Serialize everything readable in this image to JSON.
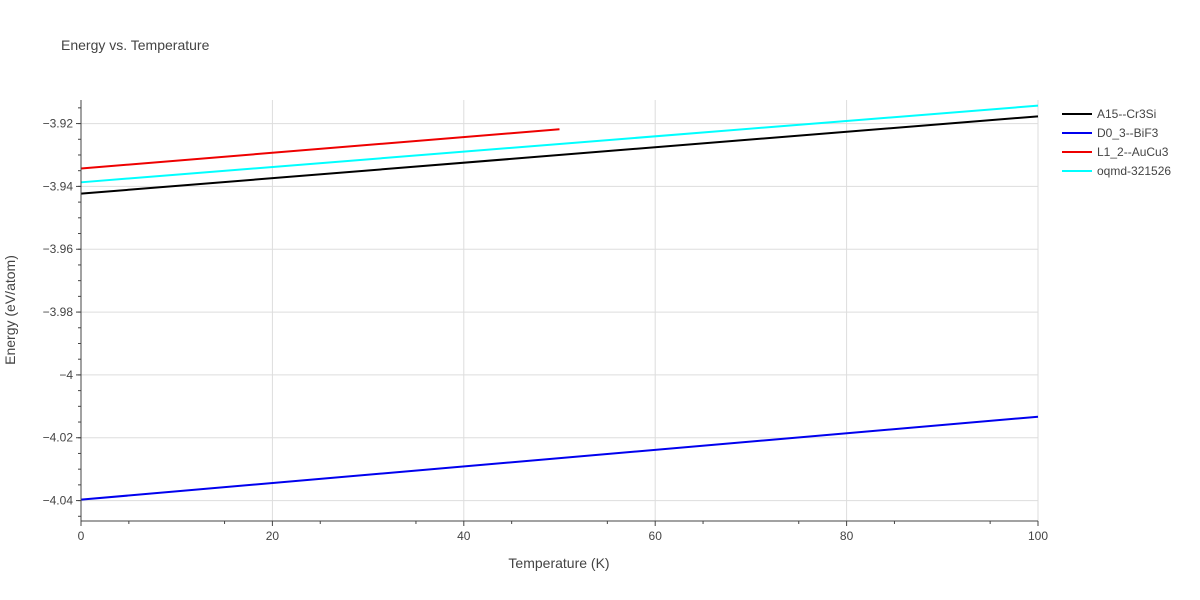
{
  "chart_data": {
    "type": "line",
    "title": "Energy vs. Temperature",
    "xlabel": "Temperature (K)",
    "ylabel": "Energy (eV/atom)",
    "xlim": [
      0,
      100
    ],
    "ylim": [
      -4.0465,
      -3.9125
    ],
    "x_ticks": [
      0,
      20,
      40,
      60,
      80,
      100
    ],
    "x_tick_labels": [
      "0",
      "20",
      "40",
      "60",
      "80",
      "100"
    ],
    "y_ticks": [
      -4.04,
      -4.02,
      -4.0,
      -3.98,
      -3.96,
      -3.94,
      -3.92
    ],
    "y_tick_labels": [
      "−4.04",
      "−4.02",
      "−4",
      "−3.98",
      "−3.96",
      "−3.94",
      "−3.92"
    ],
    "grid": true,
    "legend_position": "top-right",
    "series": [
      {
        "name": "A15--Cr3Si",
        "color": "#000000",
        "x": [
          0,
          100
        ],
        "y": [
          -3.9423,
          -3.9177
        ]
      },
      {
        "name": "D0_3--BiF3",
        "color": "#0000ee",
        "x": [
          0,
          100
        ],
        "y": [
          -4.0397,
          -4.0133
        ]
      },
      {
        "name": "L1_2--AuCu3",
        "color": "#ee0000",
        "x": [
          0,
          50
        ],
        "y": [
          -3.9343,
          -3.9218
        ]
      },
      {
        "name": "oqmd-321526",
        "color": "#00ffff",
        "x": [
          0,
          100
        ],
        "y": [
          -3.9387,
          -3.9143
        ]
      }
    ]
  }
}
